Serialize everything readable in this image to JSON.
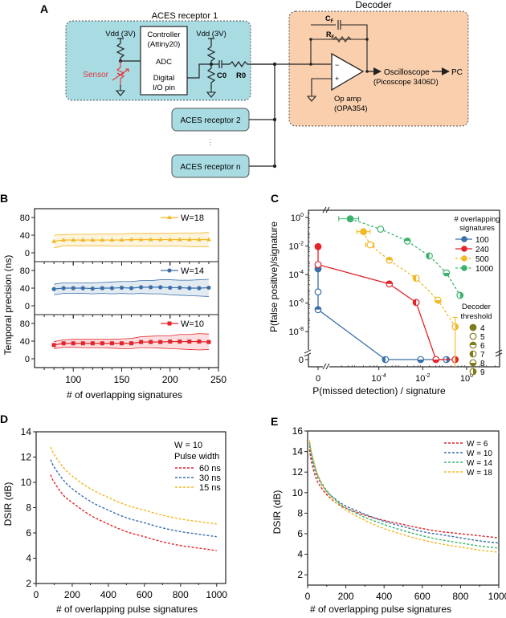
{
  "panels": {
    "A": {
      "label": "A",
      "receptor1_title": "ACES receptor 1",
      "decoder_title": "Decoder",
      "vdd_left": "Vdd (3V)",
      "vdd_right": "Vdd (3V)",
      "controller_line1": "Controller",
      "controller_line2": "(Attiny20)",
      "adc": "ADC",
      "digital_line1": "Digital",
      "digital_line2": "I/O pin",
      "sensor": "Sensor",
      "c0": "C0",
      "r0": "R0",
      "cf": "C",
      "cf_sub": "F",
      "rf": "R",
      "rf_sub": "F",
      "opamp_line1": "Op amp",
      "opamp_line2": "(OPA354)",
      "minus": "−",
      "plus": "+",
      "osc_line1": "Oscilloscope",
      "osc_line2": "(Picoscope 3406D)",
      "pc": "PC",
      "receptor2": "ACES receptor 2",
      "ellipsis": "⋮",
      "receptorn": "ACES receptor n",
      "colors": {
        "receptor_fill": "#a9dbe3",
        "decoder_fill": "#f9cfae",
        "sensor": "#e0393e"
      }
    }
  },
  "chart_data": [
    {
      "id": "B",
      "label": "B",
      "type": "line",
      "title": "",
      "xlabel": "# of overlapping signatures",
      "ylabel": "Temporal precision (ns)",
      "xlim": [
        60,
        250
      ],
      "xticks": [
        100,
        150,
        200,
        250
      ],
      "ylim": [
        -20,
        100
      ],
      "yticks": [
        0,
        40,
        80
      ],
      "x": [
        80,
        90,
        100,
        110,
        120,
        130,
        140,
        150,
        160,
        170,
        180,
        190,
        200,
        210,
        220,
        230,
        240
      ],
      "series": [
        {
          "name": "W=18",
          "color": "#f2b824",
          "marker": "triangle",
          "values": [
            26,
            29,
            29,
            29,
            29,
            29,
            29,
            29,
            30,
            30,
            30,
            30,
            30,
            30,
            30,
            30,
            30
          ],
          "upper": [
            40,
            41,
            42,
            42,
            42,
            43,
            43,
            43,
            44,
            44,
            44,
            44,
            44,
            45,
            45,
            45,
            46
          ],
          "lower": [
            11,
            16,
            16,
            16,
            16,
            16,
            15,
            15,
            15,
            15,
            15,
            15,
            15,
            15,
            14,
            14,
            14
          ]
        },
        {
          "name": "W=14",
          "color": "#3a6fa8",
          "marker": "circle",
          "values": [
            38,
            40,
            40,
            40,
            39,
            40,
            40,
            41,
            40,
            42,
            42,
            42,
            41,
            41,
            40,
            40,
            41
          ],
          "upper": [
            49,
            52,
            52,
            52,
            52,
            53,
            54,
            55,
            55,
            57,
            57,
            59,
            59,
            58,
            58,
            59,
            60
          ],
          "lower": [
            25,
            28,
            28,
            28,
            27,
            28,
            27,
            28,
            27,
            28,
            27,
            27,
            25,
            24,
            23,
            22,
            21
          ]
        },
        {
          "name": "W=10",
          "color": "#e3242b",
          "marker": "square",
          "values": [
            31,
            35,
            35,
            35,
            35,
            35,
            35,
            35,
            35,
            38,
            38,
            38,
            39,
            39,
            39,
            39,
            38
          ],
          "upper": [
            39,
            43,
            44,
            44,
            44,
            44,
            44,
            45,
            46,
            50,
            51,
            52,
            52,
            55,
            55,
            57,
            56
          ],
          "lower": [
            23,
            26,
            26,
            25,
            25,
            25,
            24,
            23,
            23,
            25,
            25,
            24,
            23,
            22,
            21,
            20,
            21
          ]
        }
      ]
    },
    {
      "id": "C",
      "label": "C",
      "type": "scatter",
      "xlabel": "P(missed detection) / signature",
      "ylabel": "P(false positive)/signature",
      "x_scale": "log with zero break",
      "y_scale": "log with zero break",
      "xticks": [
        "0",
        "10-4",
        "10-2",
        "100"
      ],
      "yticks": [
        "0",
        "10-8",
        "10-6",
        "10-4",
        "10-2",
        "100"
      ],
      "xlim_log": [
        -6,
        1.5
      ],
      "ylim_log": [
        -9,
        0.5
      ],
      "legend_title": "# overlapping signatures",
      "legend_title_line1": "# overlapping",
      "legend_title_line2": "signatures",
      "threshold_title_line1": "Decoder",
      "threshold_title_line2": "threshold",
      "thresholds": [
        {
          "value": "4",
          "fill": "full"
        },
        {
          "value": "5",
          "fill": "empty"
        },
        {
          "value": "6",
          "fill": "top"
        },
        {
          "value": "7",
          "fill": "left"
        },
        {
          "value": "8",
          "fill": "bottom"
        },
        {
          "value": "9",
          "fill": "right"
        }
      ],
      "threshold_color": "#7f7a1a",
      "series": [
        {
          "name": "100",
          "color": "#3a6fa8",
          "dashed": false,
          "points": [
            {
              "x": 0,
              "y": 0.00025,
              "threshold": 4
            },
            {
              "x": 0,
              "y": 6e-06,
              "threshold": 5
            },
            {
              "x": 0,
              "y": 3.5e-07,
              "threshold": 6
            },
            {
              "x": 0.0002,
              "y": 0,
              "threshold": 7
            },
            {
              "x": 0.008,
              "y": 0,
              "threshold": 8
            },
            {
              "x": 0.12,
              "y": 0,
              "threshold": 9
            }
          ]
        },
        {
          "name": "240",
          "color": "#e3242b",
          "dashed": false,
          "points": [
            {
              "x": 0,
              "y": 0.009,
              "threshold": 4
            },
            {
              "x": 0,
              "y": 0.0005,
              "threshold": 5
            },
            {
              "x": 0.0003,
              "y": 2.2e-05,
              "threshold": 6
            },
            {
              "x": 0.005,
              "y": 1.1e-06,
              "threshold": 7
            },
            {
              "x": 0.04,
              "y": 0,
              "threshold": 8
            },
            {
              "x": 0.3,
              "y": 0,
              "threshold": 9
            }
          ]
        },
        {
          "name": "500",
          "color": "#f2b824",
          "dashed": true,
          "points": [
            {
              "x": 2e-05,
              "y": 0.1,
              "threshold": 4,
              "xerr": [
                1e-05,
                4e-05
              ]
            },
            {
              "x": 4e-05,
              "y": 0.012,
              "threshold": 5,
              "xerr": [
                2.5e-05,
                6e-05
              ]
            },
            {
              "x": 0.0003,
              "y": 0.001,
              "threshold": 6
            },
            {
              "x": 0.005,
              "y": 5.5e-05,
              "threshold": 7
            },
            {
              "x": 0.05,
              "y": 1.6e-06,
              "threshold": 8
            },
            {
              "x": 0.3,
              "y": 2.2e-08,
              "threshold": 9,
              "yerr": [
                0,
                1e-07
              ]
            }
          ]
        },
        {
          "name": "1000",
          "color": "#3bb36c",
          "dashed": true,
          "points": [
            {
              "x": 5e-06,
              "y": 0.8,
              "threshold": 4,
              "xerr": [
                1.5e-06,
                1.2e-05
              ]
            },
            {
              "x": 0.00012,
              "y": 0.15,
              "threshold": 5
            },
            {
              "x": 0.002,
              "y": 0.022,
              "threshold": 6
            },
            {
              "x": 0.02,
              "y": 0.002,
              "threshold": 7
            },
            {
              "x": 0.12,
              "y": 0.00013,
              "threshold": 8
            },
            {
              "x": 0.5,
              "y": 3.5e-06,
              "threshold": 9
            }
          ]
        }
      ]
    },
    {
      "id": "D",
      "label": "D",
      "type": "line",
      "xlabel": "# of overlapping pulse signatures",
      "ylabel": "DSIR (dB)",
      "xlim": [
        0,
        1050
      ],
      "xticks": [
        0,
        200,
        400,
        600,
        800,
        1000
      ],
      "ylim": [
        2,
        14
      ],
      "yticks": [
        2,
        4,
        6,
        8,
        10,
        12,
        14
      ],
      "legend_title_line1": "W = 10",
      "legend_title_line2": "Pulse width",
      "x": [
        80,
        100,
        150,
        200,
        300,
        400,
        500,
        600,
        700,
        800,
        900,
        1000
      ],
      "series": [
        {
          "name": "60 ns",
          "color": "#e3242b",
          "values": [
            10.6,
            10.0,
            9.0,
            8.4,
            7.4,
            6.7,
            6.1,
            5.7,
            5.3,
            5.0,
            4.8,
            4.6
          ]
        },
        {
          "name": "30 ns",
          "color": "#3a6fa8",
          "values": [
            11.8,
            11.2,
            10.2,
            9.5,
            8.5,
            7.8,
            7.2,
            6.8,
            6.4,
            6.1,
            5.9,
            5.7
          ]
        },
        {
          "name": "15 ns",
          "color": "#f2b824",
          "values": [
            12.8,
            12.2,
            11.2,
            10.5,
            9.5,
            8.8,
            8.2,
            7.8,
            7.4,
            7.1,
            6.9,
            6.7
          ]
        }
      ]
    },
    {
      "id": "E",
      "label": "E",
      "type": "line",
      "xlabel": "# of overlapping pulse signatures",
      "ylabel": "DSIR (dB)",
      "xlim": [
        0,
        1000
      ],
      "xticks": [
        0,
        200,
        400,
        600,
        800,
        1000
      ],
      "ylim": [
        1,
        16
      ],
      "yticks": [
        2,
        4,
        6,
        8,
        10,
        12,
        14,
        16
      ],
      "x": [
        10,
        20,
        40,
        60,
        100,
        150,
        200,
        300,
        400,
        500,
        600,
        700,
        800,
        900,
        1000
      ],
      "series": [
        {
          "name": "W = 6",
          "color": "#e3242b",
          "values": [
            14.2,
            13.0,
            11.6,
            10.8,
            9.8,
            9.0,
            8.5,
            7.8,
            7.3,
            6.9,
            6.5,
            6.2,
            6.0,
            5.8,
            5.6
          ]
        },
        {
          "name": "W = 10",
          "color": "#3a6fa8",
          "values": [
            14.6,
            13.5,
            12.1,
            11.2,
            10.1,
            9.3,
            8.7,
            7.9,
            7.2,
            6.7,
            6.2,
            5.9,
            5.6,
            5.3,
            5.1
          ]
        },
        {
          "name": "W = 14",
          "color": "#3bb36c",
          "values": [
            14.9,
            13.8,
            12.4,
            11.4,
            10.2,
            9.2,
            8.5,
            7.6,
            6.9,
            6.3,
            5.8,
            5.4,
            5.1,
            4.8,
            4.6
          ]
        },
        {
          "name": "W = 18",
          "color": "#f2b824",
          "values": [
            15.1,
            14.0,
            12.5,
            11.4,
            10.0,
            9.0,
            8.3,
            7.3,
            6.5,
            5.9,
            5.4,
            5.0,
            4.7,
            4.4,
            4.2
          ]
        }
      ]
    }
  ]
}
